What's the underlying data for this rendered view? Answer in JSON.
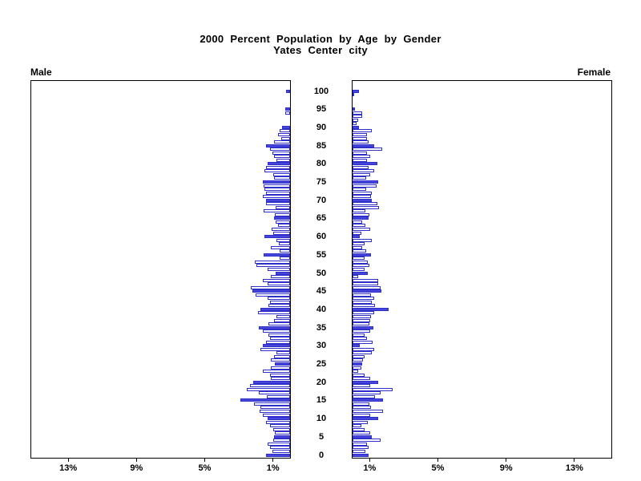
{
  "title": {
    "line1": "2000 Percent Population by Age by Gender",
    "line2": "Yates Center city"
  },
  "panel_labels": {
    "left": "Male",
    "right": "Female"
  },
  "chart_data": {
    "type": "bar",
    "subtype": "population-pyramid",
    "orientation": "horizontal-mirrored",
    "unit": "percent of total population",
    "ages": "single-year ages 0 through 100, age 0 at bottom",
    "highlight_rule": "ages divisible by 5 drawn as solid blue bars; all other ages white bars with blue outline",
    "age_axis_ticks": [
      "100",
      "95",
      "90",
      "85",
      "80",
      "75",
      "70",
      "65",
      "60",
      "55",
      "50",
      "45",
      "40",
      "35",
      "30",
      "25",
      "20",
      "15",
      "10",
      "5",
      "0"
    ],
    "pct_axis_tick_values": [
      1,
      5,
      9,
      13
    ],
    "pct_axis_ticks_left": [
      "13%",
      "9%",
      "5%",
      "1%"
    ],
    "pct_axis_ticks_right": [
      "1%",
      "5%",
      "9%",
      "13%"
    ],
    "xlim_pct": [
      0,
      15.2
    ],
    "grid": false,
    "legend": false,
    "colors": {
      "bar_fill": "#4646DC",
      "bar_outline": "#2E2EC8",
      "axis": "#000000",
      "background": "#FFFFFF"
    },
    "series": [
      {
        "name": "Male",
        "side": "left",
        "values": [
          1.4,
          1.04,
          1.19,
          1.32,
          0.99,
          0.92,
          0.88,
          0.99,
          1.19,
          1.4,
          1.3,
          1.58,
          1.77,
          1.74,
          2.12,
          2.92,
          1.35,
          1.82,
          2.53,
          2.33,
          2.16,
          1.11,
          1.19,
          1.58,
          1.11,
          0.88,
          1.11,
          0.92,
          0.8,
          1.74,
          1.61,
          1.43,
          1.19,
          1.27,
          1.61,
          1.82,
          1.27,
          0.92,
          0.8,
          1.9,
          1.74,
          1.27,
          1.19,
          1.3,
          2.0,
          2.21,
          2.29,
          1.3,
          1.6,
          1.15,
          0.83,
          1.3,
          1.95,
          2.05,
          0.6,
          1.55,
          0.6,
          1.15,
          0.65,
          0.8,
          1.5,
          1.0,
          1.1,
          0.7,
          0.85,
          0.95,
          0.9,
          1.55,
          0.85,
          1.4,
          1.4,
          1.61,
          1.43,
          1.51,
          1.55,
          1.59,
          0.92,
          0.99,
          1.51,
          1.4,
          1.32,
          0.8,
          0.92,
          1.04,
          1.19,
          1.4,
          0.96,
          0.53,
          0.72,
          0.61,
          0.47,
          0.0,
          0.0,
          0.0,
          0.3,
          0.28,
          0.0,
          0.0,
          0.0,
          0.0,
          0.24
        ]
      },
      {
        "name": "Female",
        "side": "right",
        "values": [
          0.94,
          0.74,
          0.94,
          0.83,
          1.65,
          1.14,
          1.02,
          0.71,
          0.52,
          0.89,
          1.49,
          1.02,
          1.8,
          1.1,
          0.99,
          1.8,
          1.3,
          1.65,
          2.35,
          1.02,
          1.49,
          1.05,
          0.71,
          0.31,
          0.52,
          0.55,
          0.63,
          0.71,
          1.15,
          1.26,
          0.42,
          1.18,
          0.83,
          0.71,
          1.02,
          1.21,
          0.99,
          1.02,
          1.1,
          1.26,
          2.09,
          1.33,
          1.15,
          1.26,
          1.1,
          1.68,
          1.65,
          1.52,
          1.52,
          0.31,
          0.89,
          0.71,
          0.99,
          0.89,
          0.71,
          1.1,
          0.79,
          0.58,
          0.71,
          1.15,
          0.42,
          0.52,
          1.02,
          0.74,
          0.55,
          0.94,
          0.99,
          0.74,
          1.57,
          1.46,
          1.14,
          1.1,
          1.15,
          0.79,
          1.41,
          1.52,
          0.79,
          1.02,
          1.26,
          0.94,
          1.45,
          0.86,
          1.02,
          0.86,
          1.73,
          1.26,
          0.94,
          0.85,
          0.86,
          1.14,
          0.39,
          0.24,
          0.31,
          0.55,
          0.55,
          0.15,
          0.0,
          0.0,
          0.0,
          0.11,
          0.39
        ]
      }
    ]
  }
}
